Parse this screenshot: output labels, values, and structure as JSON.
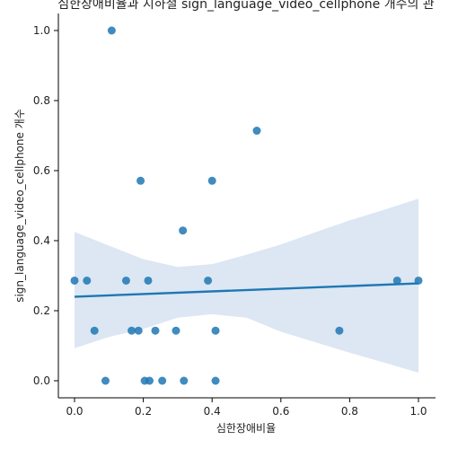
{
  "chart_data": {
    "type": "scatter",
    "title": "심한장애비율과 지하철 sign_language_video_cellphone 개수의 관",
    "xlabel": "심한장애비율",
    "ylabel": "sign_language_video_cellphone 개수",
    "xlim": [
      -0.05,
      1.05
    ],
    "ylim": [
      -0.05,
      1.05
    ],
    "x_ticks": [
      0.0,
      0.2,
      0.4,
      0.6,
      0.8,
      1.0
    ],
    "y_ticks": [
      0.0,
      0.2,
      0.4,
      0.6,
      0.8,
      1.0
    ],
    "x_tick_labels": [
      "0.0",
      "0.2",
      "0.4",
      "0.6",
      "0.8",
      "1.0"
    ],
    "y_tick_labels": [
      "0.0",
      "0.2",
      "0.4",
      "0.6",
      "0.8",
      "1.0"
    ],
    "grid": false,
    "series": [
      {
        "points": [
          {
            "x": 0.0,
            "y": 0.286
          },
          {
            "x": 0.036,
            "y": 0.286
          },
          {
            "x": 0.058,
            "y": 0.143
          },
          {
            "x": 0.09,
            "y": 0.0
          },
          {
            "x": 0.108,
            "y": 1.0
          },
          {
            "x": 0.15,
            "y": 0.286
          },
          {
            "x": 0.166,
            "y": 0.143
          },
          {
            "x": 0.186,
            "y": 0.143
          },
          {
            "x": 0.192,
            "y": 0.571
          },
          {
            "x": 0.204,
            "y": 0.0
          },
          {
            "x": 0.214,
            "y": 0.286
          },
          {
            "x": 0.218,
            "y": 0.0
          },
          {
            "x": 0.235,
            "y": 0.143
          },
          {
            "x": 0.255,
            "y": 0.0
          },
          {
            "x": 0.295,
            "y": 0.143
          },
          {
            "x": 0.315,
            "y": 0.429
          },
          {
            "x": 0.318,
            "y": 0.0
          },
          {
            "x": 0.388,
            "y": 0.286
          },
          {
            "x": 0.4,
            "y": 0.571
          },
          {
            "x": 0.41,
            "y": 0.143
          },
          {
            "x": 0.41,
            "y": 0.0
          },
          {
            "x": 0.53,
            "y": 0.714
          },
          {
            "x": 0.77,
            "y": 0.143
          },
          {
            "x": 0.938,
            "y": 0.286
          },
          {
            "x": 1.0,
            "y": 0.286
          }
        ]
      }
    ],
    "regression_line": {
      "x": [
        0.0,
        1.0
      ],
      "y": [
        0.24,
        0.278
      ]
    },
    "confidence_band": {
      "x": [
        0.0,
        0.1,
        0.2,
        0.3,
        0.4,
        0.5,
        0.6,
        0.7,
        0.8,
        0.9,
        1.0
      ],
      "upper": [
        0.425,
        0.386,
        0.347,
        0.325,
        0.333,
        0.36,
        0.389,
        0.424,
        0.458,
        0.488,
        0.52
      ],
      "lower": [
        0.093,
        0.125,
        0.148,
        0.18,
        0.19,
        0.18,
        0.14,
        0.11,
        0.08,
        0.052,
        0.023
      ]
    },
    "colors": {
      "points": "#1f77b4",
      "line": "#1f77b4",
      "band": "#dce7f3"
    }
  }
}
